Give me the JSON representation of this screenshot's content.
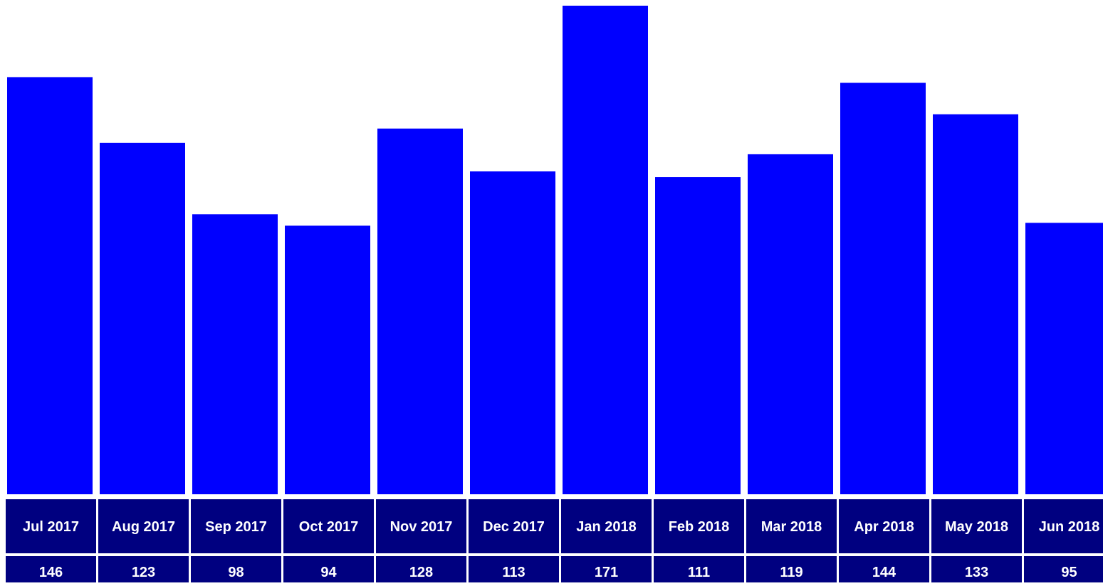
{
  "chart_data": {
    "type": "bar",
    "categories": [
      "Jul 2017",
      "Aug 2017",
      "Sep 2017",
      "Oct 2017",
      "Nov 2017",
      "Dec 2017",
      "Jan 2018",
      "Feb 2018",
      "Mar 2018",
      "Apr 2018",
      "May 2018",
      "Jun 2018"
    ],
    "values": [
      146,
      123,
      98,
      94,
      128,
      113,
      171,
      111,
      119,
      144,
      133,
      95
    ],
    "title": "",
    "xlabel": "",
    "ylabel": "",
    "ylim": [
      0,
      171
    ],
    "grid": false,
    "legend": "none"
  },
  "colors": {
    "bar": "#0000ff",
    "label_cell": "#000080",
    "label_text": "#ffffff",
    "background": "#ffffff"
  }
}
